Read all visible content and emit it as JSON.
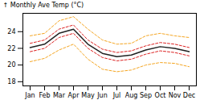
{
  "chart_data": {
    "type": "line",
    "categories": [
      "Jan",
      "Feb",
      "Mar",
      "Apr",
      "May",
      "Jun",
      "Jul",
      "Aug",
      "Sep",
      "Oct",
      "Nov",
      "Dec"
    ],
    "series": [
      {
        "color": "#f5a623",
        "line_style": "dashed",
        "values": [
          23.5,
          23.8,
          25.3,
          25.8,
          24.3,
          23.0,
          22.5,
          22.6,
          23.5,
          23.8,
          23.5,
          23.3
        ]
      },
      {
        "color": "#f5a623",
        "line_style": "dashed",
        "values": [
          20.4,
          20.8,
          21.8,
          22.5,
          20.7,
          19.5,
          19.2,
          19.4,
          20.0,
          20.3,
          20.2,
          19.8
        ]
      },
      {
        "color": "#dd2222",
        "line_style": "dashed",
        "values": [
          22.6,
          23.0,
          24.3,
          24.8,
          23.0,
          21.9,
          21.5,
          21.7,
          22.3,
          22.7,
          22.5,
          22.1
        ]
      },
      {
        "color": "#dd2222",
        "line_style": "dashed",
        "values": [
          21.6,
          22.0,
          23.3,
          23.8,
          22.0,
          20.9,
          20.5,
          20.7,
          21.3,
          21.7,
          21.5,
          21.1
        ]
      },
      {
        "color": "#222222",
        "line_style": "solid",
        "values": [
          22.1,
          22.5,
          23.8,
          24.3,
          22.5,
          21.4,
          21.0,
          21.2,
          21.8,
          22.2,
          22.0,
          21.6
        ]
      }
    ],
    "ylabel": "Monthly Ave Temp (°C)",
    "ylim": [
      17.5,
      26.2
    ],
    "yticks": [
      18,
      20,
      22,
      24
    ],
    "grid": false
  }
}
